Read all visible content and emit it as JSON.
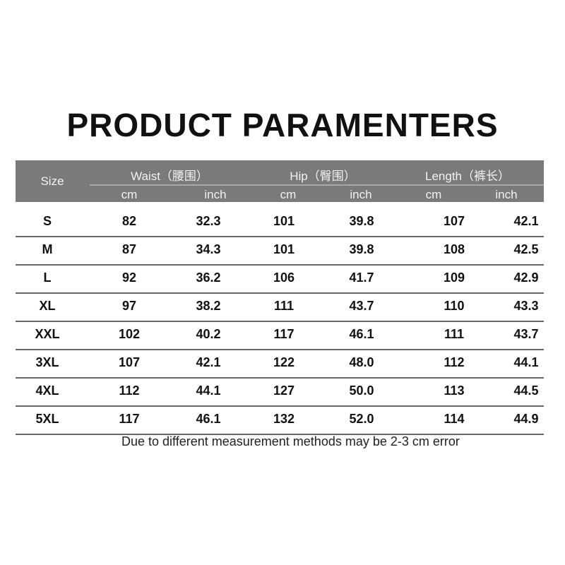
{
  "title": "PRODUCT PARAMENTERS",
  "header": {
    "size": "Size",
    "waist": "Waist（腰围）",
    "hip": "Hip（臀围）",
    "length": "Length（裤长）",
    "units": [
      "cm",
      "inch",
      "cm",
      "inch",
      "cm",
      "inch"
    ]
  },
  "rows": [
    [
      "S",
      "82",
      "32.3",
      "101",
      "39.8",
      "107",
      "42.1"
    ],
    [
      "M",
      "87",
      "34.3",
      "101",
      "39.8",
      "108",
      "42.5"
    ],
    [
      "L",
      "92",
      "36.2",
      "106",
      "41.7",
      "109",
      "42.9"
    ],
    [
      "XL",
      "97",
      "38.2",
      "111",
      "43.7",
      "110",
      "43.3"
    ],
    [
      "XXL",
      "102",
      "40.2",
      "117",
      "46.1",
      "111",
      "43.7"
    ],
    [
      "3XL",
      "107",
      "42.1",
      "122",
      "48.0",
      "112",
      "44.1"
    ],
    [
      "4XL",
      "112",
      "44.1",
      "127",
      "50.0",
      "113",
      "44.5"
    ],
    [
      "5XL",
      "117",
      "46.1",
      "132",
      "52.0",
      "114",
      "44.9"
    ]
  ],
  "note": "Due to different measurement methods may be 2-3 cm error"
}
